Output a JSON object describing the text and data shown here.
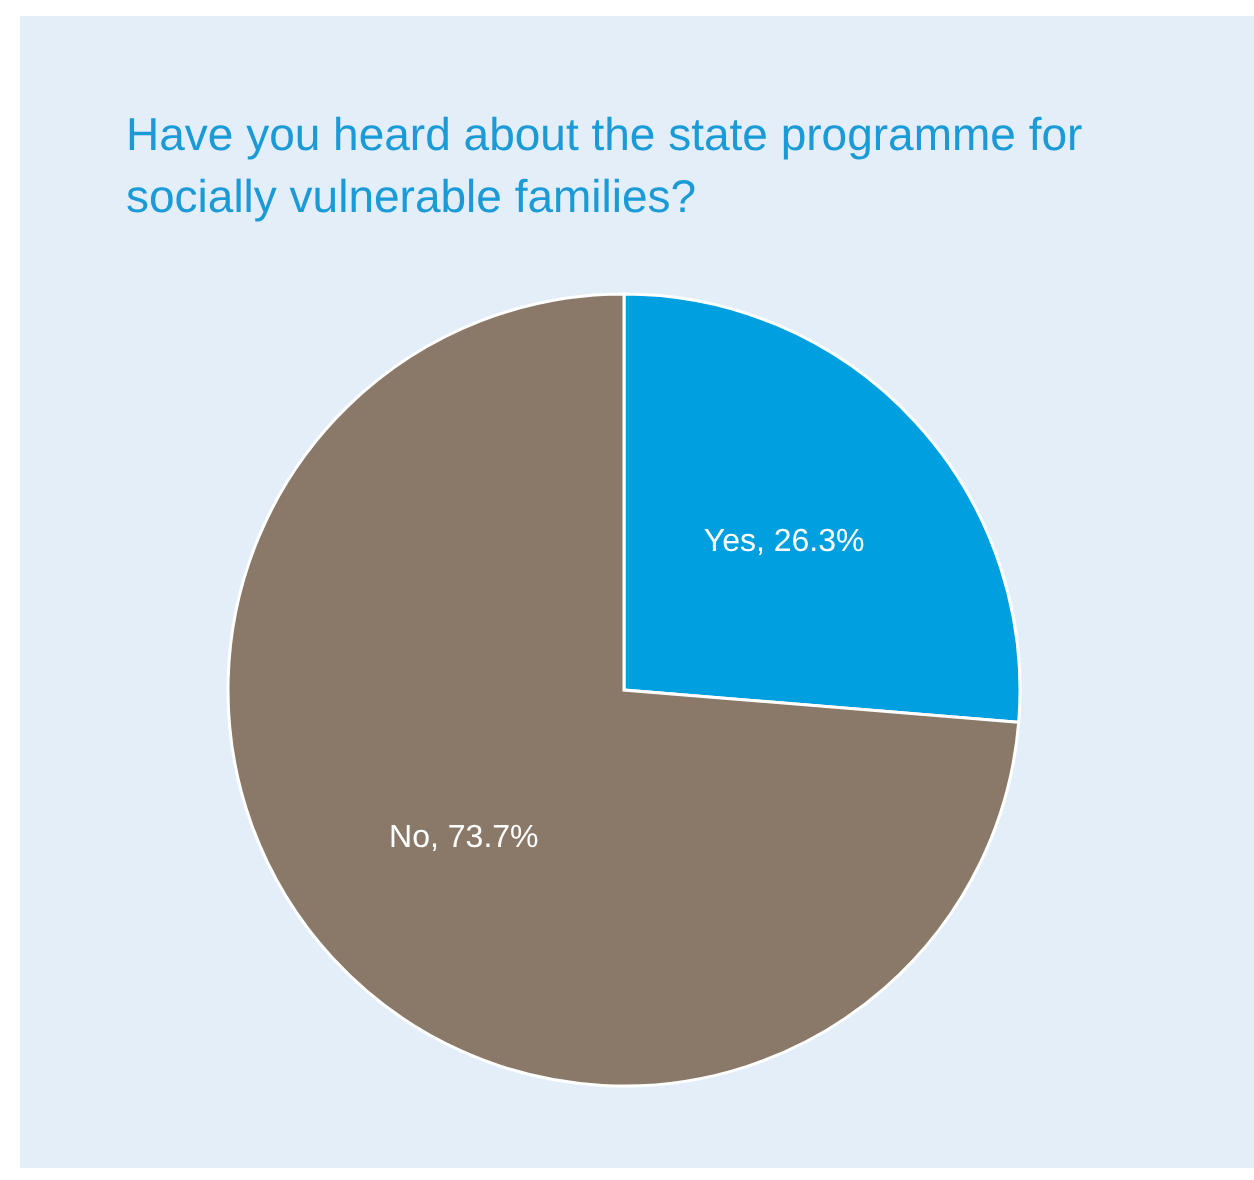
{
  "chart_data": {
    "type": "pie",
    "title": "Have you heard about the state programme for socially vulnerable families?",
    "categories": [
      "Yes",
      "No"
    ],
    "values": [
      26.3,
      73.7
    ],
    "colors": [
      "#009fdf",
      "#8a7968"
    ],
    "value_labels": [
      "26.3%",
      "73.7%"
    ],
    "legend": false
  }
}
